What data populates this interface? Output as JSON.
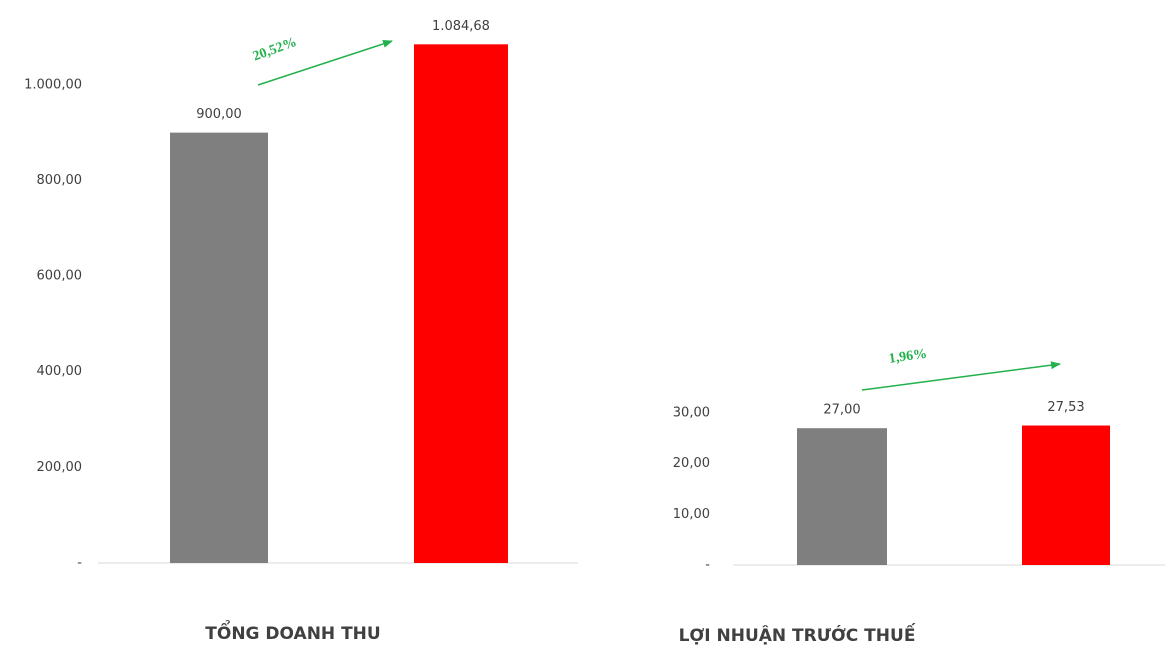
{
  "chart_data": [
    {
      "type": "bar",
      "title": "TỔNG DOANH THU",
      "annotation": "20,52%",
      "categories": [
        null,
        null
      ],
      "values": [
        900,
        1084.68
      ],
      "value_labels": [
        "900,00",
        "1.084,68"
      ],
      "colors": [
        "#7f7f7f",
        "#ff0000"
      ],
      "ylim": [
        0,
        1100
      ],
      "yticks": [
        {
          "value": 0,
          "label": "-"
        },
        {
          "value": 200,
          "label": "200,00"
        },
        {
          "value": 400,
          "label": "400,00"
        },
        {
          "value": 600,
          "label": "600,00"
        },
        {
          "value": 800,
          "label": "800,00"
        },
        {
          "value": 1000,
          "label": "1.000,00"
        }
      ]
    },
    {
      "type": "bar",
      "title": "LỢI NHUẬN TRƯỚC THUẾ",
      "annotation": "1,96%",
      "categories": [
        null,
        null
      ],
      "values": [
        27,
        27.53
      ],
      "value_labels": [
        "27,00",
        "27,53"
      ],
      "colors": [
        "#7f7f7f",
        "#ff0000"
      ],
      "ylim": [
        0,
        30
      ],
      "yticks": [
        {
          "value": 0,
          "label": "-"
        },
        {
          "value": 10,
          "label": "10,00"
        },
        {
          "value": 20,
          "label": "20,00"
        },
        {
          "value": 30,
          "label": "30,00"
        }
      ]
    }
  ]
}
